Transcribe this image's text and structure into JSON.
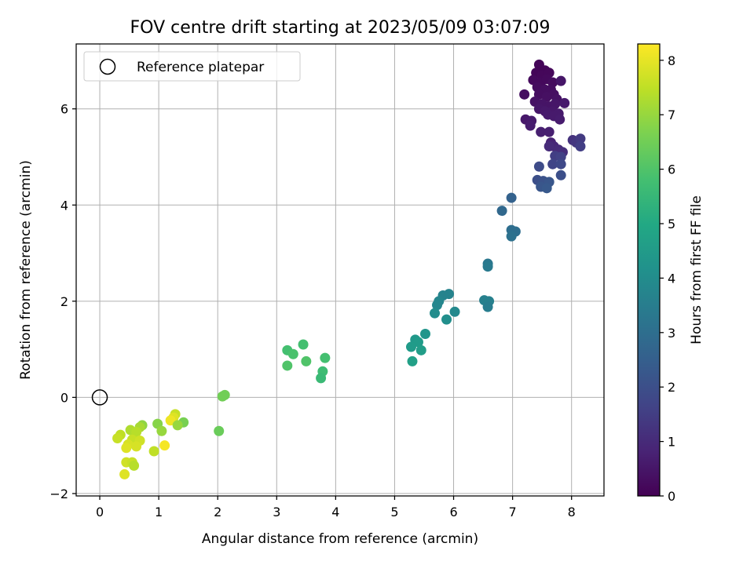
{
  "chart_data": {
    "type": "scatter",
    "title": "FOV centre drift starting at 2023/05/09 03:07:09",
    "xlabel": "Angular distance from reference (arcmin)",
    "ylabel": "Rotation from reference (arcmin)",
    "xlim": [
      -0.4,
      8.55
    ],
    "ylim": [
      -2.05,
      7.35
    ],
    "xticks": [
      0,
      1,
      2,
      3,
      4,
      5,
      6,
      7,
      8
    ],
    "yticks": [
      -2,
      0,
      2,
      4,
      6
    ],
    "grid": true,
    "legend": {
      "placement": "top-left",
      "entries": [
        "Reference platepar"
      ]
    },
    "reference_point": {
      "label": "Reference platepar",
      "x": 0,
      "y": 0
    },
    "colorbar": {
      "label": "Hours from first FF file",
      "range": [
        0,
        8.3
      ],
      "ticks": [
        0,
        1,
        2,
        3,
        4,
        5,
        6,
        7,
        8
      ],
      "colormap": "viridis"
    },
    "points": [
      {
        "x": 7.45,
        "y": 6.92,
        "h": 0.1
      },
      {
        "x": 7.55,
        "y": 6.8,
        "h": 0.1
      },
      {
        "x": 7.4,
        "y": 6.75,
        "h": 0.1
      },
      {
        "x": 7.5,
        "y": 6.7,
        "h": 0.15
      },
      {
        "x": 7.62,
        "y": 6.75,
        "h": 0.15
      },
      {
        "x": 7.35,
        "y": 6.6,
        "h": 0.2
      },
      {
        "x": 7.48,
        "y": 6.55,
        "h": 0.2
      },
      {
        "x": 7.58,
        "y": 6.62,
        "h": 0.2
      },
      {
        "x": 7.68,
        "y": 6.55,
        "h": 0.25
      },
      {
        "x": 7.42,
        "y": 6.45,
        "h": 0.25
      },
      {
        "x": 7.55,
        "y": 6.4,
        "h": 0.3
      },
      {
        "x": 7.65,
        "y": 6.4,
        "h": 0.3
      },
      {
        "x": 7.45,
        "y": 6.3,
        "h": 0.3
      },
      {
        "x": 7.58,
        "y": 6.25,
        "h": 0.35
      },
      {
        "x": 7.7,
        "y": 6.3,
        "h": 0.35
      },
      {
        "x": 7.75,
        "y": 6.2,
        "h": 0.4
      },
      {
        "x": 7.38,
        "y": 6.15,
        "h": 0.4
      },
      {
        "x": 7.5,
        "y": 6.1,
        "h": 0.45
      },
      {
        "x": 7.62,
        "y": 6.05,
        "h": 0.45
      },
      {
        "x": 7.72,
        "y": 6.1,
        "h": 0.5
      },
      {
        "x": 7.82,
        "y": 6.58,
        "h": 0.5
      },
      {
        "x": 7.2,
        "y": 6.3,
        "h": 0.3
      },
      {
        "x": 7.45,
        "y": 6.0,
        "h": 0.5
      },
      {
        "x": 7.55,
        "y": 5.95,
        "h": 0.55
      },
      {
        "x": 7.68,
        "y": 5.95,
        "h": 0.55
      },
      {
        "x": 7.78,
        "y": 5.9,
        "h": 0.6
      },
      {
        "x": 7.88,
        "y": 6.12,
        "h": 0.6
      },
      {
        "x": 7.6,
        "y": 5.88,
        "h": 0.6
      },
      {
        "x": 7.7,
        "y": 5.85,
        "h": 0.6
      },
      {
        "x": 7.22,
        "y": 5.78,
        "h": 0.55
      },
      {
        "x": 7.32,
        "y": 5.75,
        "h": 0.6
      },
      {
        "x": 7.8,
        "y": 5.78,
        "h": 0.65
      },
      {
        "x": 7.3,
        "y": 5.65,
        "h": 0.65
      },
      {
        "x": 7.48,
        "y": 5.52,
        "h": 0.7
      },
      {
        "x": 7.62,
        "y": 5.52,
        "h": 0.7
      },
      {
        "x": 7.65,
        "y": 5.3,
        "h": 0.8
      },
      {
        "x": 7.7,
        "y": 5.22,
        "h": 0.9
      },
      {
        "x": 7.78,
        "y": 5.15,
        "h": 1.0
      },
      {
        "x": 7.62,
        "y": 5.22,
        "h": 1.0
      },
      {
        "x": 7.85,
        "y": 5.1,
        "h": 1.1
      },
      {
        "x": 8.02,
        "y": 5.35,
        "h": 1.2
      },
      {
        "x": 8.08,
        "y": 5.3,
        "h": 1.3
      },
      {
        "x": 8.15,
        "y": 5.38,
        "h": 1.4
      },
      {
        "x": 8.15,
        "y": 5.22,
        "h": 1.5
      },
      {
        "x": 7.72,
        "y": 5.02,
        "h": 1.5
      },
      {
        "x": 7.82,
        "y": 5.0,
        "h": 1.6
      },
      {
        "x": 7.68,
        "y": 4.85,
        "h": 1.7
      },
      {
        "x": 7.82,
        "y": 4.85,
        "h": 1.8
      },
      {
        "x": 7.45,
        "y": 4.8,
        "h": 1.9
      },
      {
        "x": 7.82,
        "y": 4.62,
        "h": 2.0
      },
      {
        "x": 7.42,
        "y": 4.52,
        "h": 2.0
      },
      {
        "x": 7.52,
        "y": 4.5,
        "h": 2.1
      },
      {
        "x": 7.62,
        "y": 4.48,
        "h": 2.2
      },
      {
        "x": 7.48,
        "y": 4.38,
        "h": 2.2
      },
      {
        "x": 7.58,
        "y": 4.35,
        "h": 2.3
      },
      {
        "x": 6.98,
        "y": 4.15,
        "h": 2.6
      },
      {
        "x": 6.82,
        "y": 3.88,
        "h": 2.8
      },
      {
        "x": 6.98,
        "y": 3.48,
        "h": 3.0
      },
      {
        "x": 7.05,
        "y": 3.45,
        "h": 3.0
      },
      {
        "x": 6.98,
        "y": 3.35,
        "h": 3.1
      },
      {
        "x": 6.58,
        "y": 2.78,
        "h": 3.3
      },
      {
        "x": 6.58,
        "y": 2.72,
        "h": 3.4
      },
      {
        "x": 5.92,
        "y": 2.15,
        "h": 3.7
      },
      {
        "x": 5.82,
        "y": 2.12,
        "h": 3.7
      },
      {
        "x": 5.75,
        "y": 2.0,
        "h": 3.8
      },
      {
        "x": 5.72,
        "y": 1.92,
        "h": 3.8
      },
      {
        "x": 6.52,
        "y": 2.02,
        "h": 3.6
      },
      {
        "x": 6.6,
        "y": 2.0,
        "h": 3.6
      },
      {
        "x": 6.58,
        "y": 1.88,
        "h": 3.5
      },
      {
        "x": 5.68,
        "y": 1.75,
        "h": 4.0
      },
      {
        "x": 6.02,
        "y": 1.78,
        "h": 3.9
      },
      {
        "x": 5.88,
        "y": 1.62,
        "h": 4.1
      },
      {
        "x": 5.52,
        "y": 1.32,
        "h": 4.3
      },
      {
        "x": 5.35,
        "y": 1.2,
        "h": 4.4
      },
      {
        "x": 5.4,
        "y": 1.15,
        "h": 4.5
      },
      {
        "x": 5.28,
        "y": 1.05,
        "h": 4.5
      },
      {
        "x": 5.45,
        "y": 0.98,
        "h": 4.6
      },
      {
        "x": 5.3,
        "y": 0.75,
        "h": 4.7
      },
      {
        "x": 3.45,
        "y": 1.1,
        "h": 5.8
      },
      {
        "x": 3.18,
        "y": 0.98,
        "h": 5.8
      },
      {
        "x": 3.28,
        "y": 0.9,
        "h": 5.9
      },
      {
        "x": 3.82,
        "y": 0.82,
        "h": 5.8
      },
      {
        "x": 3.5,
        "y": 0.75,
        "h": 6.0
      },
      {
        "x": 3.18,
        "y": 0.66,
        "h": 6.0
      },
      {
        "x": 3.78,
        "y": 0.54,
        "h": 5.7
      },
      {
        "x": 3.75,
        "y": 0.4,
        "h": 5.6
      },
      {
        "x": 2.12,
        "y": 0.05,
        "h": 6.5
      },
      {
        "x": 2.08,
        "y": 0.02,
        "h": 6.5
      },
      {
        "x": 2.02,
        "y": -0.7,
        "h": 6.4
      },
      {
        "x": 1.28,
        "y": -0.35,
        "h": 7.6
      },
      {
        "x": 1.25,
        "y": -0.42,
        "h": 7.9
      },
      {
        "x": 1.2,
        "y": -0.48,
        "h": 8.1
      },
      {
        "x": 1.42,
        "y": -0.52,
        "h": 6.6
      },
      {
        "x": 1.32,
        "y": -0.58,
        "h": 7.0
      },
      {
        "x": 0.98,
        "y": -0.55,
        "h": 6.8
      },
      {
        "x": 0.72,
        "y": -0.58,
        "h": 6.9
      },
      {
        "x": 0.68,
        "y": -0.62,
        "h": 7.2
      },
      {
        "x": 1.05,
        "y": -0.7,
        "h": 7.0
      },
      {
        "x": 0.52,
        "y": -0.68,
        "h": 7.3
      },
      {
        "x": 0.62,
        "y": -0.72,
        "h": 7.4
      },
      {
        "x": 0.35,
        "y": -0.78,
        "h": 7.5
      },
      {
        "x": 0.3,
        "y": -0.85,
        "h": 7.6
      },
      {
        "x": 0.55,
        "y": -0.88,
        "h": 7.6
      },
      {
        "x": 0.68,
        "y": -0.9,
        "h": 7.7
      },
      {
        "x": 0.48,
        "y": -0.98,
        "h": 7.8
      },
      {
        "x": 0.62,
        "y": -1.02,
        "h": 7.8
      },
      {
        "x": 0.45,
        "y": -1.05,
        "h": 7.9
      },
      {
        "x": 1.1,
        "y": -1.0,
        "h": 8.2
      },
      {
        "x": 0.92,
        "y": -1.12,
        "h": 7.5
      },
      {
        "x": 0.45,
        "y": -1.35,
        "h": 7.7
      },
      {
        "x": 0.55,
        "y": -1.35,
        "h": 7.6
      },
      {
        "x": 0.58,
        "y": -1.42,
        "h": 7.4
      },
      {
        "x": 0.42,
        "y": -1.6,
        "h": 7.9
      }
    ]
  }
}
